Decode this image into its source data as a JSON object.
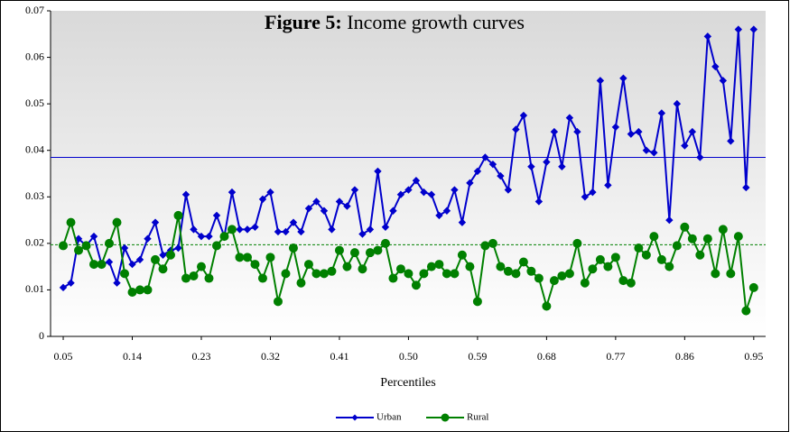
{
  "chart_data": {
    "type": "line",
    "title_bold": "Figure 5:",
    "title": "Income growth curves",
    "x_label": "Percentiles",
    "x": [
      0.05,
      0.06,
      0.07,
      0.08,
      0.09,
      0.1,
      0.11,
      0.12,
      0.13,
      0.14,
      0.15,
      0.16,
      0.17,
      0.18,
      0.19,
      0.2,
      0.21,
      0.22,
      0.23,
      0.24,
      0.25,
      0.26,
      0.27,
      0.28,
      0.29,
      0.3,
      0.31,
      0.32,
      0.33,
      0.34,
      0.35,
      0.36,
      0.37,
      0.38,
      0.39,
      0.4,
      0.41,
      0.42,
      0.43,
      0.44,
      0.45,
      0.46,
      0.47,
      0.48,
      0.49,
      0.5,
      0.51,
      0.52,
      0.53,
      0.54,
      0.55,
      0.56,
      0.57,
      0.58,
      0.59,
      0.6,
      0.61,
      0.62,
      0.63,
      0.64,
      0.65,
      0.66,
      0.67,
      0.68,
      0.69,
      0.7,
      0.71,
      0.72,
      0.73,
      0.74,
      0.75,
      0.76,
      0.77,
      0.78,
      0.79,
      0.8,
      0.81,
      0.82,
      0.83,
      0.84,
      0.85,
      0.86,
      0.87,
      0.88,
      0.89,
      0.9,
      0.91,
      0.92,
      0.93,
      0.94,
      0.95
    ],
    "series": [
      {
        "name": "Urban",
        "color": "#0000cc",
        "marker": "diamond",
        "mean": 0.0385,
        "mean_style": "solid",
        "values": [
          0.0105,
          0.0115,
          0.021,
          0.0195,
          0.0215,
          0.0155,
          0.016,
          0.0115,
          0.019,
          0.0155,
          0.0165,
          0.021,
          0.0245,
          0.0175,
          0.0185,
          0.019,
          0.0305,
          0.023,
          0.0215,
          0.0215,
          0.026,
          0.0215,
          0.031,
          0.023,
          0.023,
          0.0235,
          0.0295,
          0.031,
          0.0225,
          0.0225,
          0.0245,
          0.0225,
          0.0275,
          0.029,
          0.027,
          0.023,
          0.029,
          0.028,
          0.0315,
          0.022,
          0.023,
          0.0355,
          0.0235,
          0.027,
          0.0305,
          0.0315,
          0.0335,
          0.031,
          0.0305,
          0.026,
          0.027,
          0.0315,
          0.0245,
          0.033,
          0.0355,
          0.0385,
          0.037,
          0.0345,
          0.0315,
          0.0445,
          0.0475,
          0.0365,
          0.029,
          0.0375,
          0.044,
          0.0365,
          0.047,
          0.044,
          0.03,
          0.031,
          0.055,
          0.0325,
          0.045,
          0.0555,
          0.0435,
          0.044,
          0.04,
          0.0395,
          0.048,
          0.025,
          0.05,
          0.041,
          0.044,
          0.0385,
          0.0645,
          0.058,
          0.055,
          0.042,
          0.066,
          0.032,
          0.066
        ]
      },
      {
        "name": "Rural",
        "color": "#008000",
        "marker": "circle",
        "mean": 0.0197,
        "mean_style": "dashed",
        "values": [
          0.0195,
          0.0245,
          0.0185,
          0.0195,
          0.0155,
          0.0155,
          0.02,
          0.0245,
          0.0135,
          0.0095,
          0.01,
          0.01,
          0.0165,
          0.0145,
          0.0175,
          0.026,
          0.0125,
          0.013,
          0.015,
          0.0125,
          0.0195,
          0.0215,
          0.023,
          0.017,
          0.017,
          0.0155,
          0.0125,
          0.017,
          0.0075,
          0.0135,
          0.019,
          0.0115,
          0.0155,
          0.0135,
          0.0135,
          0.014,
          0.0185,
          0.015,
          0.018,
          0.0145,
          0.018,
          0.0185,
          0.02,
          0.0125,
          0.0145,
          0.0135,
          0.011,
          0.0135,
          0.015,
          0.0155,
          0.0135,
          0.0135,
          0.0175,
          0.015,
          0.0075,
          0.0195,
          0.02,
          0.015,
          0.014,
          0.0135,
          0.016,
          0.014,
          0.0125,
          0.0065,
          0.012,
          0.013,
          0.0135,
          0.02,
          0.0115,
          0.0145,
          0.0165,
          0.015,
          0.017,
          0.012,
          0.0115,
          0.019,
          0.0175,
          0.0215,
          0.0165,
          0.015,
          0.0195,
          0.0235,
          0.021,
          0.0175,
          0.021,
          0.0135,
          0.023,
          0.0135,
          0.0215,
          0.0055,
          0.0105
        ]
      }
    ],
    "xlim": [
      0.0335,
      0.9655
    ],
    "xticks": [
      0.05,
      0.14,
      0.23,
      0.32,
      0.41,
      {
        "value": 0.5,
        "label": "0.50"
      },
      0.59,
      0.68,
      0.77,
      0.86,
      0.95
    ],
    "ylim": [
      0,
      0.07
    ],
    "yticks": [
      0,
      0.01,
      0.02,
      0.03,
      0.04,
      0.05,
      0.06,
      0.07
    ],
    "legend": "bottom"
  }
}
